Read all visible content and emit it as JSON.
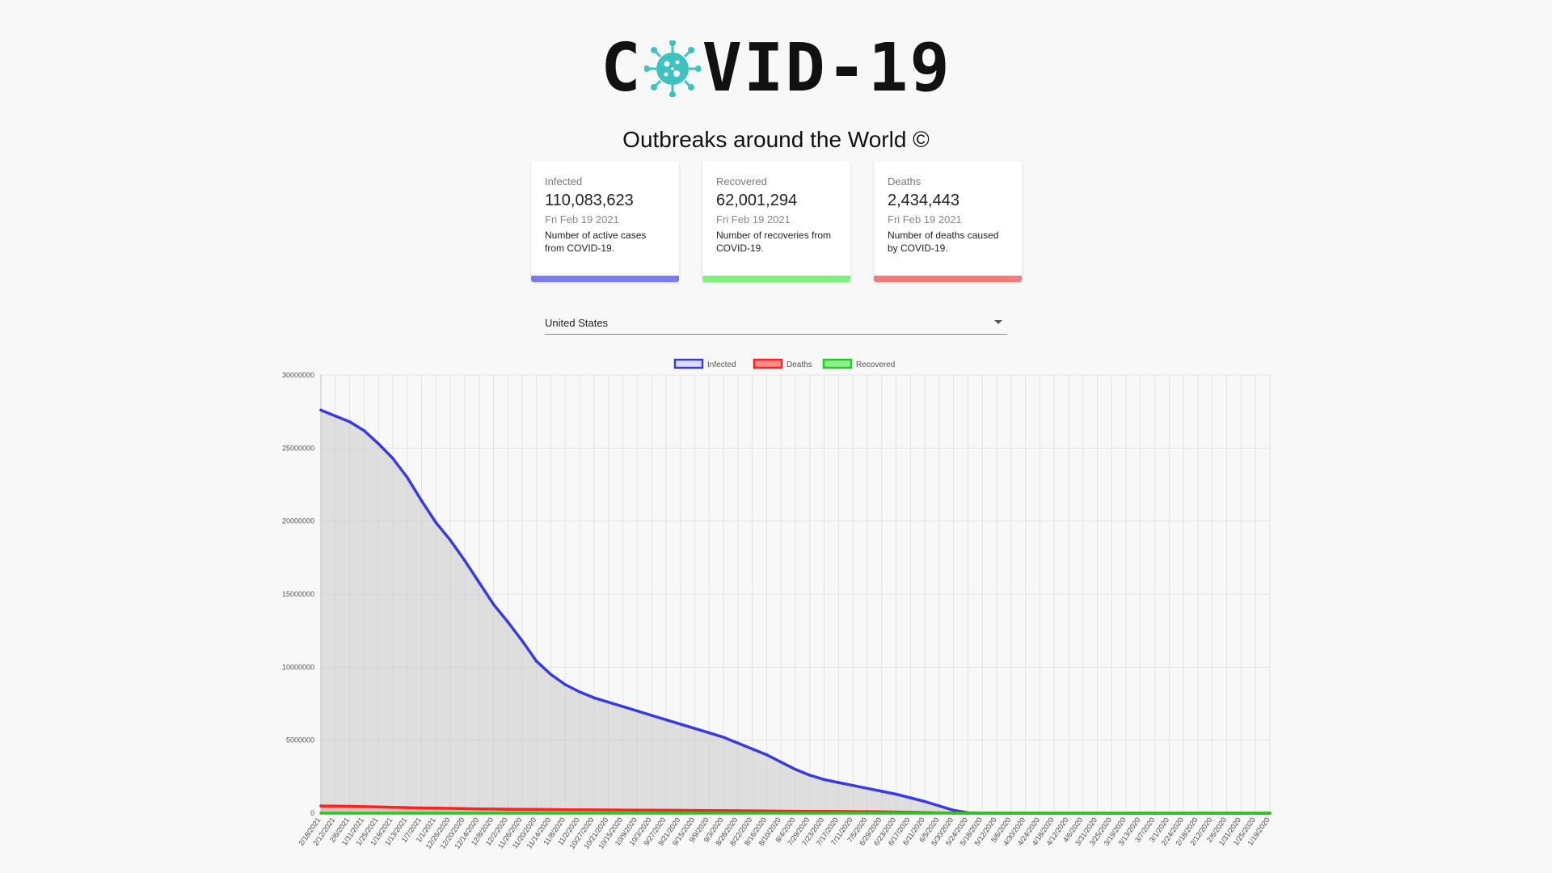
{
  "header": {
    "logo_text_left": "C",
    "logo_text_right": "VID-19",
    "logo_icon": "virus-icon",
    "subtitle": "Outbreaks around the World ©"
  },
  "cards": [
    {
      "label": "Infected",
      "value": "110,083,623",
      "date": "Fri Feb 19 2021",
      "desc": "Number of active cases from COVID-19.",
      "color": "#7b7bf0"
    },
    {
      "label": "Recovered",
      "value": "62,001,294",
      "date": "Fri Feb 19 2021",
      "desc": "Number of recoveries from COVID-19.",
      "color": "#7ff07f"
    },
    {
      "label": "Deaths",
      "value": "2,434,443",
      "date": "Fri Feb 19 2021",
      "desc": "Number of deaths caused by COVID-19.",
      "color": "#f07b7b"
    }
  ],
  "country_select": {
    "value": "United States",
    "icon": "chevron-down-icon"
  },
  "chart_data": {
    "type": "line",
    "legend": [
      {
        "name": "Infected",
        "color": "#3b3bdc"
      },
      {
        "name": "Deaths",
        "color": "#ff2020"
      },
      {
        "name": "Recovered",
        "color": "#22cc22"
      }
    ],
    "legend_position": "top",
    "ylim": [
      0,
      30000000
    ],
    "yticks": [
      "0",
      "5000000",
      "10000000",
      "15000000",
      "20000000",
      "25000000",
      "30000000"
    ],
    "x_labels": [
      "2/18/2021",
      "2/12/2021",
      "2/6/2021",
      "1/31/2021",
      "1/25/2021",
      "1/19/2021",
      "1/13/2021",
      "1/7/2021",
      "1/1/2021",
      "12/26/2020",
      "12/20/2020",
      "12/14/2020",
      "12/8/2020",
      "12/2/2020",
      "11/26/2020",
      "11/20/2020",
      "11/14/2020",
      "11/8/2020",
      "11/2/2020",
      "10/27/2020",
      "10/21/2020",
      "10/15/2020",
      "10/9/2020",
      "10/3/2020",
      "9/27/2020",
      "9/21/2020",
      "9/15/2020",
      "9/9/2020",
      "9/3/2020",
      "8/28/2020",
      "8/22/2020",
      "8/16/2020",
      "8/10/2020",
      "8/4/2020",
      "7/29/2020",
      "7/23/2020",
      "7/17/2020",
      "7/11/2020",
      "7/5/2020",
      "6/29/2020",
      "6/23/2020",
      "6/17/2020",
      "6/11/2020",
      "6/5/2020",
      "5/30/2020",
      "5/24/2020",
      "5/18/2020",
      "5/12/2020",
      "5/6/2020",
      "4/30/2020",
      "4/24/2020",
      "4/18/2020",
      "4/12/2020",
      "4/6/2020",
      "3/31/2020",
      "3/25/2020",
      "3/19/2020",
      "3/13/2020",
      "3/7/2020",
      "3/1/2020",
      "2/24/2020",
      "2/18/2020",
      "2/12/2020",
      "2/6/2020",
      "1/31/2020",
      "1/25/2020",
      "1/19/2020"
    ],
    "series": [
      {
        "name": "Infected",
        "values": [
          27600000,
          27200000,
          26800000,
          26200000,
          25300000,
          24300000,
          23000000,
          21400000,
          19900000,
          18700000,
          17300000,
          15800000,
          14300000,
          13100000,
          11800000,
          10400000,
          9500000,
          8800000,
          8300000,
          7900000,
          7600000,
          7300000,
          7000000,
          6700000,
          6400000,
          6100000,
          5800000,
          5500000,
          5200000,
          4800000,
          4400000,
          4000000,
          3500000,
          3000000,
          2600000,
          2300000,
          2100000,
          1900000,
          1700000,
          1500000,
          1300000,
          1050000,
          800000,
          500000,
          200000,
          30000,
          10000,
          5000,
          2000,
          1000,
          500,
          300,
          200,
          100,
          50,
          20,
          10,
          8,
          6,
          5,
          4,
          3,
          2,
          1,
          1,
          1,
          1
        ]
      },
      {
        "name": "Deaths",
        "values": [
          495000,
          485000,
          470000,
          450000,
          430000,
          405000,
          380000,
          360000,
          345000,
          330000,
          310000,
          295000,
          283000,
          270000,
          262000,
          255000,
          248000,
          240000,
          232000,
          225000,
          220000,
          215000,
          210000,
          205000,
          200000,
          195000,
          190000,
          183000,
          175000,
          168000,
          160000,
          150000,
          140000,
          132000,
          125000,
          120000,
          115000,
          110000,
          105000,
          95000,
          80000,
          60000,
          40000,
          20000,
          6000,
          1000,
          200,
          50,
          20,
          10,
          5,
          2,
          1,
          0,
          0,
          0,
          0,
          0,
          0,
          0,
          0,
          0,
          0,
          0,
          0,
          0,
          0
        ]
      },
      {
        "name": "Recovered",
        "values": [
          0,
          0,
          0,
          0,
          0,
          0,
          0,
          0,
          0,
          0,
          0,
          0,
          0,
          0,
          0,
          0,
          0,
          0,
          0,
          0,
          0,
          0,
          0,
          0,
          0,
          0,
          0,
          0,
          0,
          0,
          0,
          0,
          0,
          0,
          0,
          0,
          0,
          0,
          0,
          0,
          0,
          0,
          0,
          0,
          0,
          0,
          0,
          0,
          0,
          0,
          0,
          0,
          0,
          0,
          0,
          0,
          0,
          0,
          0,
          0,
          0,
          0,
          0,
          0,
          0,
          0,
          0
        ]
      }
    ]
  }
}
